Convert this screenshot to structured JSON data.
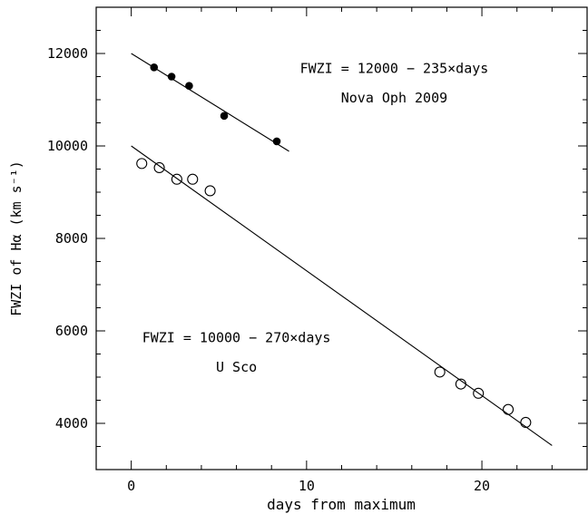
{
  "chart_data": {
    "type": "scatter",
    "title": "",
    "xlabel": "days from maximum",
    "ylabel": "FWZI of Hα (km s⁻¹)",
    "xlim": [
      -2,
      26
    ],
    "ylim": [
      3000,
      13000
    ],
    "x_ticks": [
      "0",
      "10",
      "20"
    ],
    "y_ticks": [
      "4000",
      "6000",
      "8000",
      "10000",
      "12000"
    ],
    "grid": false,
    "legend": "none",
    "series": [
      {
        "name": "Nova Oph 2009",
        "marker": "filled-circle",
        "color": "#000000",
        "points": [
          [
            1.3,
            11700
          ],
          [
            2.3,
            11500
          ],
          [
            3.3,
            11300
          ],
          [
            5.3,
            10650
          ],
          [
            8.3,
            10100
          ]
        ],
        "fit": {
          "slope": -235,
          "intercept": 12000,
          "x_range": [
            0,
            9
          ]
        }
      },
      {
        "name": "U Sco",
        "marker": "open-circle",
        "color": "#000000",
        "points": [
          [
            0.6,
            9620
          ],
          [
            1.6,
            9530
          ],
          [
            2.6,
            9280
          ],
          [
            3.5,
            9280
          ],
          [
            4.5,
            9030
          ],
          [
            17.6,
            5110
          ],
          [
            18.8,
            4850
          ],
          [
            19.8,
            4650
          ],
          [
            21.5,
            4300
          ],
          [
            22.5,
            4020
          ]
        ],
        "fit": {
          "slope": -270,
          "intercept": 10000,
          "x_range": [
            0,
            24
          ]
        }
      }
    ],
    "annotations": [
      {
        "text": "FWZI = 12000 − 235×days",
        "x": 15,
        "y": 11680
      },
      {
        "text": "Nova Oph 2009",
        "x": 15,
        "y": 11040
      },
      {
        "text": "FWZI = 10000 − 270×days",
        "x": 6,
        "y": 5850
      },
      {
        "text": "U Sco",
        "x": 6,
        "y": 5220
      }
    ]
  }
}
